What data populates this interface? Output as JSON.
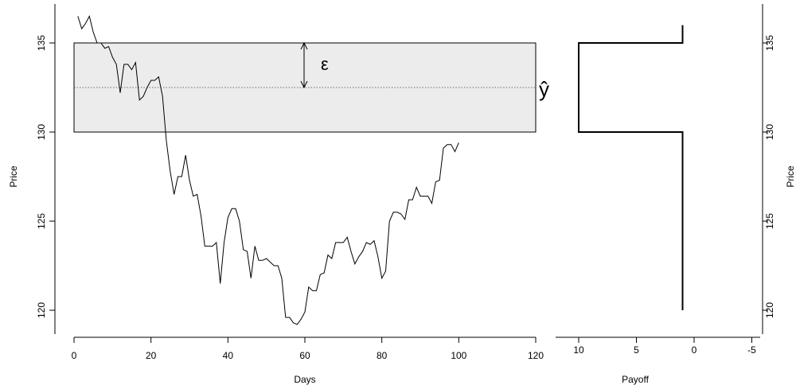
{
  "chart_data": [
    {
      "type": "line",
      "xlabel": "Days",
      "ylabel": "Price",
      "xlim": [
        0,
        120
      ],
      "ylim": [
        119,
        136.5
      ],
      "xticks": [
        "0",
        "20",
        "40",
        "60",
        "80",
        "100",
        "120"
      ],
      "yticks": [
        "120",
        "125",
        "130",
        "135"
      ],
      "series": [
        {
          "x": [
            1,
            2,
            3,
            4,
            5,
            6,
            7,
            8,
            9,
            10,
            11,
            12,
            13,
            14,
            15,
            16,
            17,
            18,
            19,
            20,
            21,
            22,
            23,
            24,
            25,
            26,
            27,
            28,
            29,
            30,
            31,
            32,
            33,
            34,
            35,
            36,
            37,
            38,
            39,
            40,
            41,
            42,
            43,
            44,
            45,
            46,
            47,
            48,
            49,
            50,
            51,
            52,
            53,
            54,
            55,
            56,
            57,
            58,
            59,
            60,
            61,
            62,
            63,
            64,
            65,
            66,
            67,
            68,
            69,
            70,
            71,
            72,
            73,
            74,
            75,
            76,
            77,
            78,
            79,
            80,
            81,
            82,
            83,
            84,
            85,
            86,
            87,
            88,
            89,
            90,
            91,
            92,
            93,
            94,
            95,
            96,
            97,
            98,
            99,
            100
          ],
          "values": [
            136.5,
            135.8,
            136.1,
            136.5,
            135.6,
            135.0,
            135.0,
            134.7,
            134.8,
            134.2,
            133.8,
            132.2,
            133.8,
            133.8,
            133.5,
            133.9,
            131.8,
            132.0,
            132.5,
            132.9,
            132.9,
            133.1,
            132.0,
            129.5,
            127.8,
            126.5,
            127.5,
            127.5,
            128.7,
            127.3,
            126.4,
            126.5,
            125.3,
            123.6,
            123.6,
            123.6,
            123.8,
            121.5,
            123.8,
            125.2,
            125.7,
            125.7,
            125.0,
            123.4,
            123.3,
            121.8,
            123.6,
            122.8,
            122.8,
            122.9,
            122.7,
            122.5,
            122.5,
            121.8,
            119.6,
            119.6,
            119.3,
            119.2,
            119.5,
            119.9,
            121.3,
            121.1,
            121.1,
            122.0,
            122.1,
            123.1,
            122.9,
            123.8,
            123.8,
            123.8,
            124.1,
            123.3,
            122.6,
            123.0,
            123.3,
            123.8,
            123.7,
            123.9,
            123.0,
            121.8,
            122.2,
            125.0,
            125.5,
            125.5,
            125.4,
            125.1,
            126.2,
            126.2,
            126.9,
            126.4,
            126.4,
            126.4,
            126.0,
            127.2,
            127.3,
            129.1,
            129.3,
            129.3,
            128.9,
            129.4
          ]
        }
      ],
      "annotations": {
        "band": {
          "from": 130,
          "to": 135,
          "x_from": 0,
          "x_to": 120
        },
        "center_line": 132.5,
        "epsilon_label": "ε",
        "yhat_label": "ŷ"
      }
    },
    {
      "type": "line",
      "xlabel": "Payoff",
      "ylabel": "Price",
      "xlim": [
        10.5,
        -6.5
      ],
      "ylim": [
        119,
        136.5
      ],
      "xticks": [
        "10",
        "5",
        "0",
        "-5"
      ],
      "yticks": [
        "120",
        "125",
        "130",
        "135"
      ],
      "series": [
        {
          "x": [
            1,
            1,
            10,
            10,
            1,
            1
          ],
          "y": [
            120,
            130,
            130,
            135,
            135,
            136
          ]
        }
      ]
    }
  ],
  "colors": {
    "band_fill": "#ececec",
    "line": "#000000"
  }
}
